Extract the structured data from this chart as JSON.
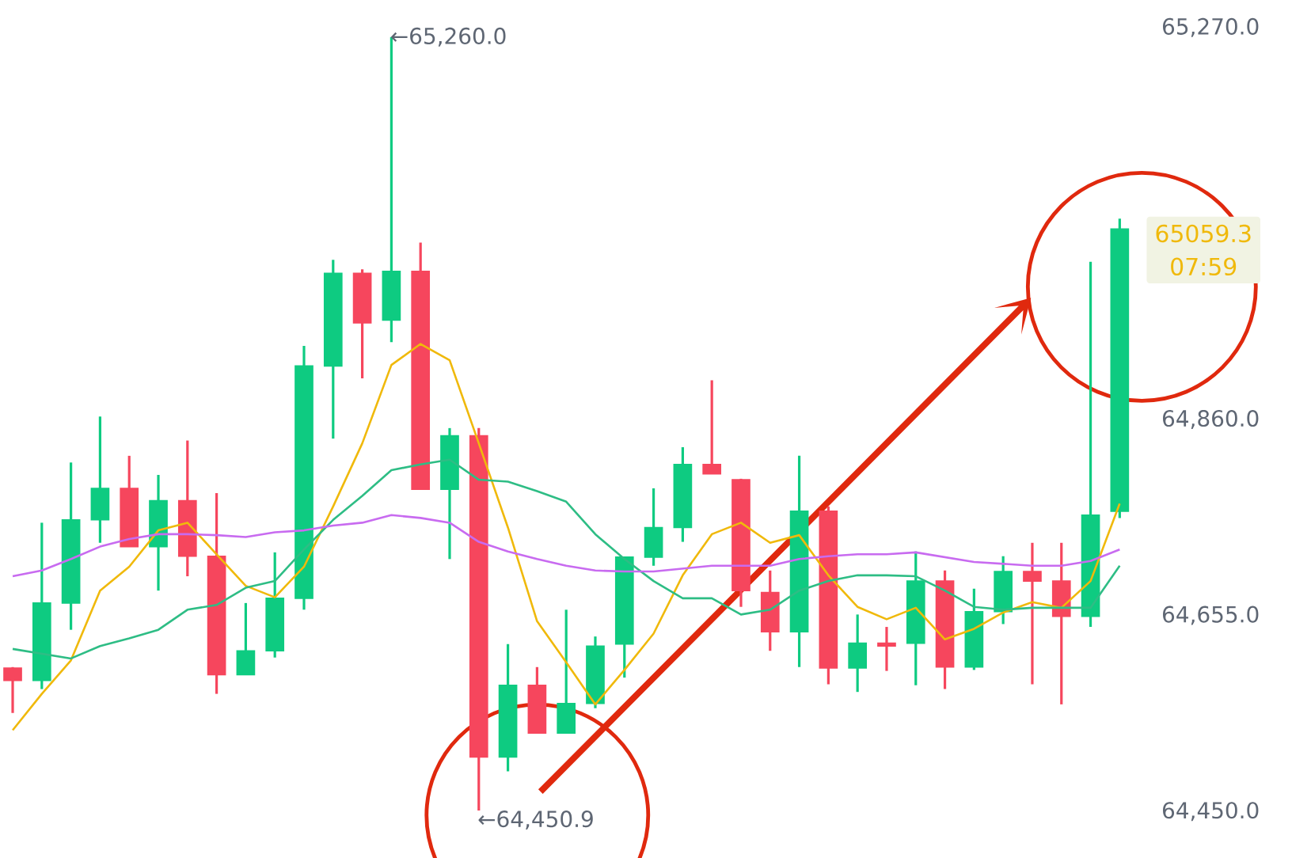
{
  "chart_data": {
    "type": "candlestick",
    "categories": [
      null,
      null,
      null,
      null,
      null,
      null,
      null,
      null,
      null,
      null,
      null,
      null,
      null,
      null,
      null,
      null,
      null,
      null,
      null,
      null,
      null,
      null,
      null,
      null,
      null,
      null,
      null,
      null,
      null,
      null,
      null,
      null,
      null,
      null,
      null,
      null,
      null,
      null,
      null
    ],
    "ohlc": [
      [
        64600,
        64601,
        64553,
        64587
      ],
      [
        64587,
        64752,
        64578,
        64668
      ],
      [
        64668,
        64815,
        64640,
        64755
      ],
      [
        64755,
        64863,
        64731,
        64788
      ],
      [
        64788,
        64822,
        64727,
        64727
      ],
      [
        64727,
        64802,
        64681,
        64775
      ],
      [
        64775,
        64838,
        64696,
        64717
      ],
      [
        64717,
        64783,
        64573,
        64593
      ],
      [
        64593,
        64668,
        64593,
        64618
      ],
      [
        64618,
        64721,
        64611,
        64673
      ],
      [
        64673,
        64937,
        64661,
        64916
      ],
      [
        64916,
        65027,
        64840,
        65013
      ],
      [
        65013,
        65017,
        64903,
        64961
      ],
      [
        64964,
        65260,
        64941,
        65015
      ],
      [
        65015,
        65045,
        64787,
        64787
      ],
      [
        64787,
        64851,
        64714,
        64843
      ],
      [
        64843,
        64851,
        64450.9,
        64507
      ],
      [
        64507,
        64625,
        64492,
        64582
      ],
      [
        64582,
        64601,
        64532,
        64532
      ],
      [
        64532,
        64661,
        64532,
        64563
      ],
      [
        64563,
        64633,
        64558,
        64623
      ],
      [
        64625,
        64716,
        64590,
        64716
      ],
      [
        64716,
        64788,
        64707,
        64747
      ],
      [
        64747,
        64831,
        64732,
        64813
      ],
      [
        64813,
        64901,
        64803,
        64803
      ],
      [
        64797,
        64798,
        64664,
        64681
      ],
      [
        64679,
        64702,
        64618,
        64638
      ],
      [
        64638,
        64822,
        64601,
        64764
      ],
      [
        64764,
        64769,
        64583,
        64600
      ],
      [
        64600,
        64656,
        64575,
        64626
      ],
      [
        64626,
        64643,
        64597,
        64623
      ],
      [
        64626,
        64722,
        64582,
        64691
      ],
      [
        64691,
        64702,
        64578,
        64601
      ],
      [
        64601,
        64683,
        64598,
        64659
      ],
      [
        64659,
        64717,
        64646,
        64701
      ],
      [
        64701,
        64731,
        64583,
        64691
      ],
      [
        64691,
        64731,
        64562,
        64654
      ],
      [
        64654,
        65025,
        64643,
        64760
      ],
      [
        64764,
        65070,
        64757,
        65059.3
      ]
    ],
    "colors": [
      "#f6465d",
      "#0ecb81",
      "#0ecb81",
      "#0ecb81",
      "#f6465d",
      "#0ecb81",
      "#f6465d",
      "#f6465d",
      "#0ecb81",
      "#0ecb81",
      "#0ecb81",
      "#0ecb81",
      "#f6465d",
      "#0ecb81",
      "#f6465d",
      "#0ecb81",
      "#f6465d",
      "#0ecb81",
      "#f6465d",
      "#0ecb81",
      "#0ecb81",
      "#0ecb81",
      "#0ecb81",
      "#0ecb81",
      "#f6465d",
      "#f6465d",
      "#f6465d",
      "#0ecb81",
      "#f6465d",
      "#0ecb81",
      "#f6465d",
      "#0ecb81",
      "#f6465d",
      "#0ecb81",
      "#0ecb81",
      "#f6465d",
      "#f6465d",
      "#0ecb81",
      "#0ecb81"
    ],
    "series": [
      {
        "type": "line",
        "color": "#f0b90b",
        "values": [
          64535,
          64573,
          64608,
          64681,
          64706,
          64744,
          64752,
          64719,
          64686,
          64674,
          64706,
          64769,
          64835,
          64917,
          64939,
          64922,
          64835,
          64747,
          64649,
          64606,
          64562,
          64598,
          64636,
          64697,
          64740,
          64752,
          64731,
          64739,
          64697,
          64664,
          64651,
          64663,
          64630,
          64641,
          64658,
          64669,
          64663,
          64691,
          64772
        ]
      },
      {
        "type": "line",
        "color": "#2ebd85",
        "values": [
          64620,
          64615,
          64610,
          64623,
          64631,
          64640,
          64661,
          64666,
          64684,
          64691,
          64724,
          64755,
          64780,
          64807,
          64813,
          64818,
          64797,
          64795,
          64785,
          64774,
          64740,
          64714,
          64691,
          64673,
          64673,
          64656,
          64661,
          64681,
          64691,
          64697,
          64697,
          64696,
          64681,
          64664,
          64661,
          64663,
          64663,
          64663,
          64707
        ]
      },
      {
        "type": "line",
        "color": "#c86bf0",
        "values": [
          64696,
          64702,
          64714,
          64727,
          64735,
          64740,
          64740,
          64739,
          64737,
          64742,
          64744,
          64749,
          64752,
          64760,
          64757,
          64752,
          64732,
          64722,
          64714,
          64707,
          64702,
          64701,
          64701,
          64704,
          64707,
          64707,
          64707,
          64714,
          64717,
          64719,
          64719,
          64721,
          64716,
          64711,
          64709,
          64707,
          64707,
          64712,
          64724
        ]
      }
    ],
    "ylim": [
      64450,
      65270
    ],
    "yticks": [
      {
        "value": 64450,
        "label": "64,450.0"
      },
      {
        "value": 64655,
        "label": "64,655.0"
      },
      {
        "value": 64860,
        "label": "64,860.0"
      },
      {
        "value": 65270,
        "label": "65,270.0"
      }
    ],
    "tick_labels": "y",
    "annotations": [
      "←65,260.0",
      "←64,450.9",
      "65059.3",
      "07:59"
    ]
  }
}
